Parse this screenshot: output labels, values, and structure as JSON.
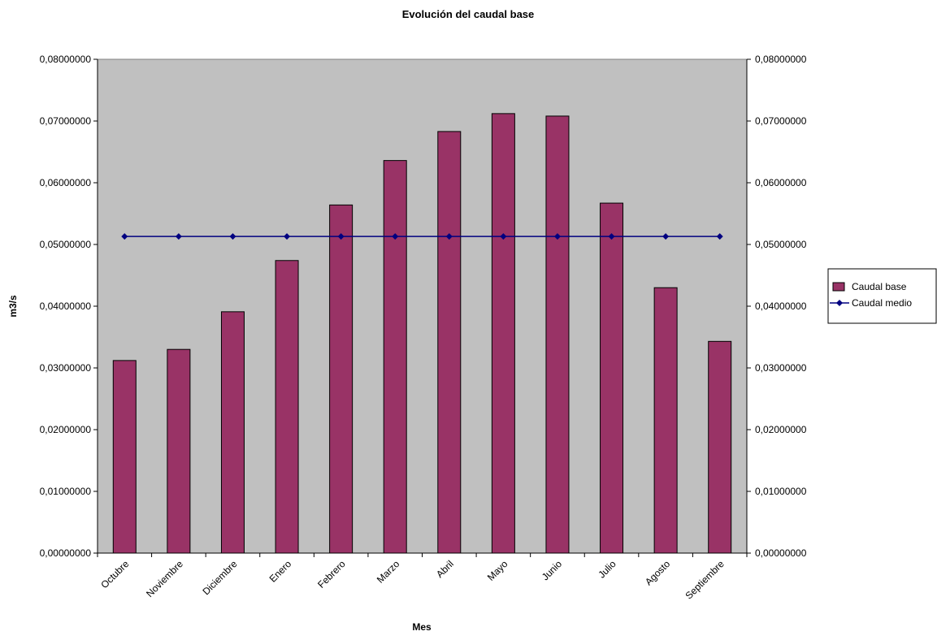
{
  "chart_data": {
    "type": "bar",
    "title": "Evolución del caudal base",
    "x_label": "Mes",
    "y_label": "m3/s",
    "categories": [
      "Octubre",
      "Noviembre",
      "Diciembre",
      "Enero",
      "Febrero",
      "Marzo",
      "Abril",
      "Mayo",
      "Junio",
      "Julio",
      "Agosto",
      "Septiembre"
    ],
    "series": [
      {
        "name": "Caudal base",
        "type": "bar",
        "color": "#993366",
        "values": [
          0.0312,
          0.033,
          0.0391,
          0.0474,
          0.0564,
          0.0636,
          0.0683,
          0.0712,
          0.0708,
          0.0567,
          0.043,
          0.0343
        ]
      },
      {
        "name": "Caudal medio",
        "type": "line",
        "color": "#000080",
        "values": [
          0.0513,
          0.0513,
          0.0513,
          0.0513,
          0.0513,
          0.0513,
          0.0513,
          0.0513,
          0.0513,
          0.0513,
          0.0513,
          0.0513
        ]
      }
    ],
    "ylim": [
      0,
      0.08
    ],
    "yticks": [
      {
        "value": 0,
        "label": "0,00000000"
      },
      {
        "value": 0.01,
        "label": "0,01000000"
      },
      {
        "value": 0.02,
        "label": "0,02000000"
      },
      {
        "value": 0.03,
        "label": "0,03000000"
      },
      {
        "value": 0.04,
        "label": "0,04000000"
      },
      {
        "value": 0.05,
        "label": "0,05000000"
      },
      {
        "value": 0.06,
        "label": "0,06000000"
      },
      {
        "value": 0.07,
        "label": "0,07000000"
      },
      {
        "value": 0.08,
        "label": "0,08000000"
      }
    ],
    "y2lim": [
      0,
      0.08
    ],
    "y2ticks": [
      {
        "value": 0,
        "label": "0,00000000"
      },
      {
        "value": 0.01,
        "label": "0,01000000"
      },
      {
        "value": 0.02,
        "label": "0,02000000"
      },
      {
        "value": 0.03,
        "label": "0,03000000"
      },
      {
        "value": 0.04,
        "label": "0,04000000"
      },
      {
        "value": 0.05,
        "label": "0,05000000"
      },
      {
        "value": 0.06,
        "label": "0,06000000"
      },
      {
        "value": 0.07,
        "label": "0,07000000"
      },
      {
        "value": 0.08,
        "label": "0,08000000"
      }
    ],
    "plot_background": "#c0c0c0",
    "legend": "right"
  }
}
